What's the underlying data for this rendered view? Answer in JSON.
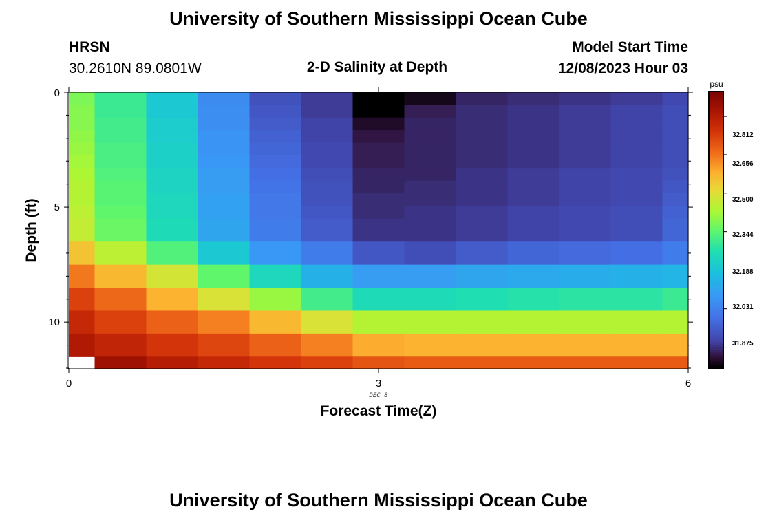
{
  "page": {
    "title": "University of Southern Mississippi Ocean Cube",
    "bottom_title": "University of Southern Mississippi Ocean Cube",
    "station_name": "HRSN",
    "station_coords": "30.2610N  89.0801W",
    "plot_title": "2-D Salinity at Depth",
    "model_start_label": "Model Start Time",
    "model_start_value": "12/08/2023 Hour 03",
    "date_label": "DEC 8"
  },
  "chart_data": {
    "type": "heatmap",
    "title": "2-D Salinity at Depth",
    "xlabel": "Forecast Time(Z)",
    "ylabel": "Depth (ft)",
    "units": "psu",
    "x_ticks": [
      "0",
      "3",
      "6"
    ],
    "y_ticks": [
      "0",
      "5",
      "10"
    ],
    "xlim": [
      0,
      6
    ],
    "ylim": [
      0,
      12
    ],
    "colorbar_ticks": [
      "32.812",
      "32.656",
      "32.500",
      "32.344",
      "32.188",
      "32.031",
      "31.875"
    ],
    "colorbar_range": [
      31.79,
      32.91
    ],
    "time_edges": [
      0,
      0.25,
      0.75,
      1.25,
      1.75,
      2.25,
      2.75,
      3.25,
      3.75,
      4.25,
      4.75,
      5.25,
      5.75,
      6
    ],
    "depth_edges": [
      0,
      0.55,
      1.1,
      1.65,
      2.2,
      2.75,
      3.3,
      3.85,
      4.4,
      4.95,
      5.5,
      6.5,
      7.5,
      8.5,
      9.5,
      10.5,
      11.5,
      12
    ],
    "values": [
      [
        32.38,
        32.3,
        32.2,
        32.05,
        31.93,
        31.89,
        31.75,
        31.81,
        31.86,
        31.87,
        31.88,
        31.89,
        31.91
      ],
      [
        32.39,
        32.3,
        32.2,
        32.06,
        31.94,
        31.89,
        31.78,
        31.85,
        31.87,
        31.88,
        31.89,
        31.9,
        31.92
      ],
      [
        32.39,
        32.31,
        32.21,
        32.06,
        31.95,
        31.9,
        31.82,
        31.86,
        31.87,
        31.88,
        31.89,
        31.9,
        31.92
      ],
      [
        32.4,
        32.31,
        32.21,
        32.07,
        31.96,
        31.9,
        31.84,
        31.86,
        31.87,
        31.88,
        31.89,
        31.9,
        31.92
      ],
      [
        32.41,
        32.32,
        32.22,
        32.07,
        31.97,
        31.91,
        31.85,
        31.86,
        31.87,
        31.88,
        31.89,
        31.9,
        31.92
      ],
      [
        32.42,
        32.32,
        32.22,
        32.08,
        31.98,
        31.91,
        31.85,
        31.86,
        31.87,
        31.88,
        31.89,
        31.9,
        31.92
      ],
      [
        32.43,
        32.33,
        32.23,
        32.09,
        31.99,
        31.92,
        31.86,
        31.86,
        31.88,
        31.89,
        31.9,
        31.91,
        31.93
      ],
      [
        32.44,
        32.34,
        32.23,
        32.09,
        32.0,
        31.93,
        31.86,
        31.87,
        31.88,
        31.89,
        31.9,
        31.91,
        31.94
      ],
      [
        32.44,
        32.34,
        32.24,
        32.1,
        32.01,
        31.93,
        31.87,
        31.87,
        31.88,
        31.89,
        31.9,
        31.91,
        31.95
      ],
      [
        32.45,
        32.35,
        32.24,
        32.1,
        32.01,
        31.94,
        31.87,
        31.88,
        31.89,
        31.9,
        31.91,
        31.92,
        31.96
      ],
      [
        32.46,
        32.36,
        32.25,
        32.11,
        32.02,
        31.95,
        31.88,
        31.88,
        31.89,
        31.9,
        31.91,
        31.92,
        31.97
      ],
      [
        32.55,
        32.45,
        32.33,
        32.2,
        32.08,
        32.02,
        31.94,
        31.92,
        31.95,
        31.97,
        31.98,
        31.99,
        32.02
      ],
      [
        32.65,
        32.57,
        32.48,
        32.35,
        32.24,
        32.14,
        32.09,
        32.09,
        32.11,
        32.12,
        32.13,
        32.14,
        32.15
      ],
      [
        32.73,
        32.67,
        32.58,
        32.49,
        32.41,
        32.31,
        32.25,
        32.25,
        32.26,
        32.27,
        32.28,
        32.28,
        32.3
      ],
      [
        32.78,
        32.73,
        32.68,
        32.64,
        32.57,
        32.49,
        32.44,
        32.44,
        32.44,
        32.44,
        32.44,
        32.44,
        32.44
      ],
      [
        32.82,
        32.79,
        32.75,
        32.72,
        32.68,
        32.64,
        32.59,
        32.58,
        32.58,
        32.58,
        32.58,
        32.58,
        32.58
      ],
      [
        null,
        32.85,
        32.81,
        32.78,
        32.75,
        32.73,
        32.7,
        32.69,
        32.69,
        32.69,
        32.69,
        32.69,
        32.69
      ]
    ]
  }
}
